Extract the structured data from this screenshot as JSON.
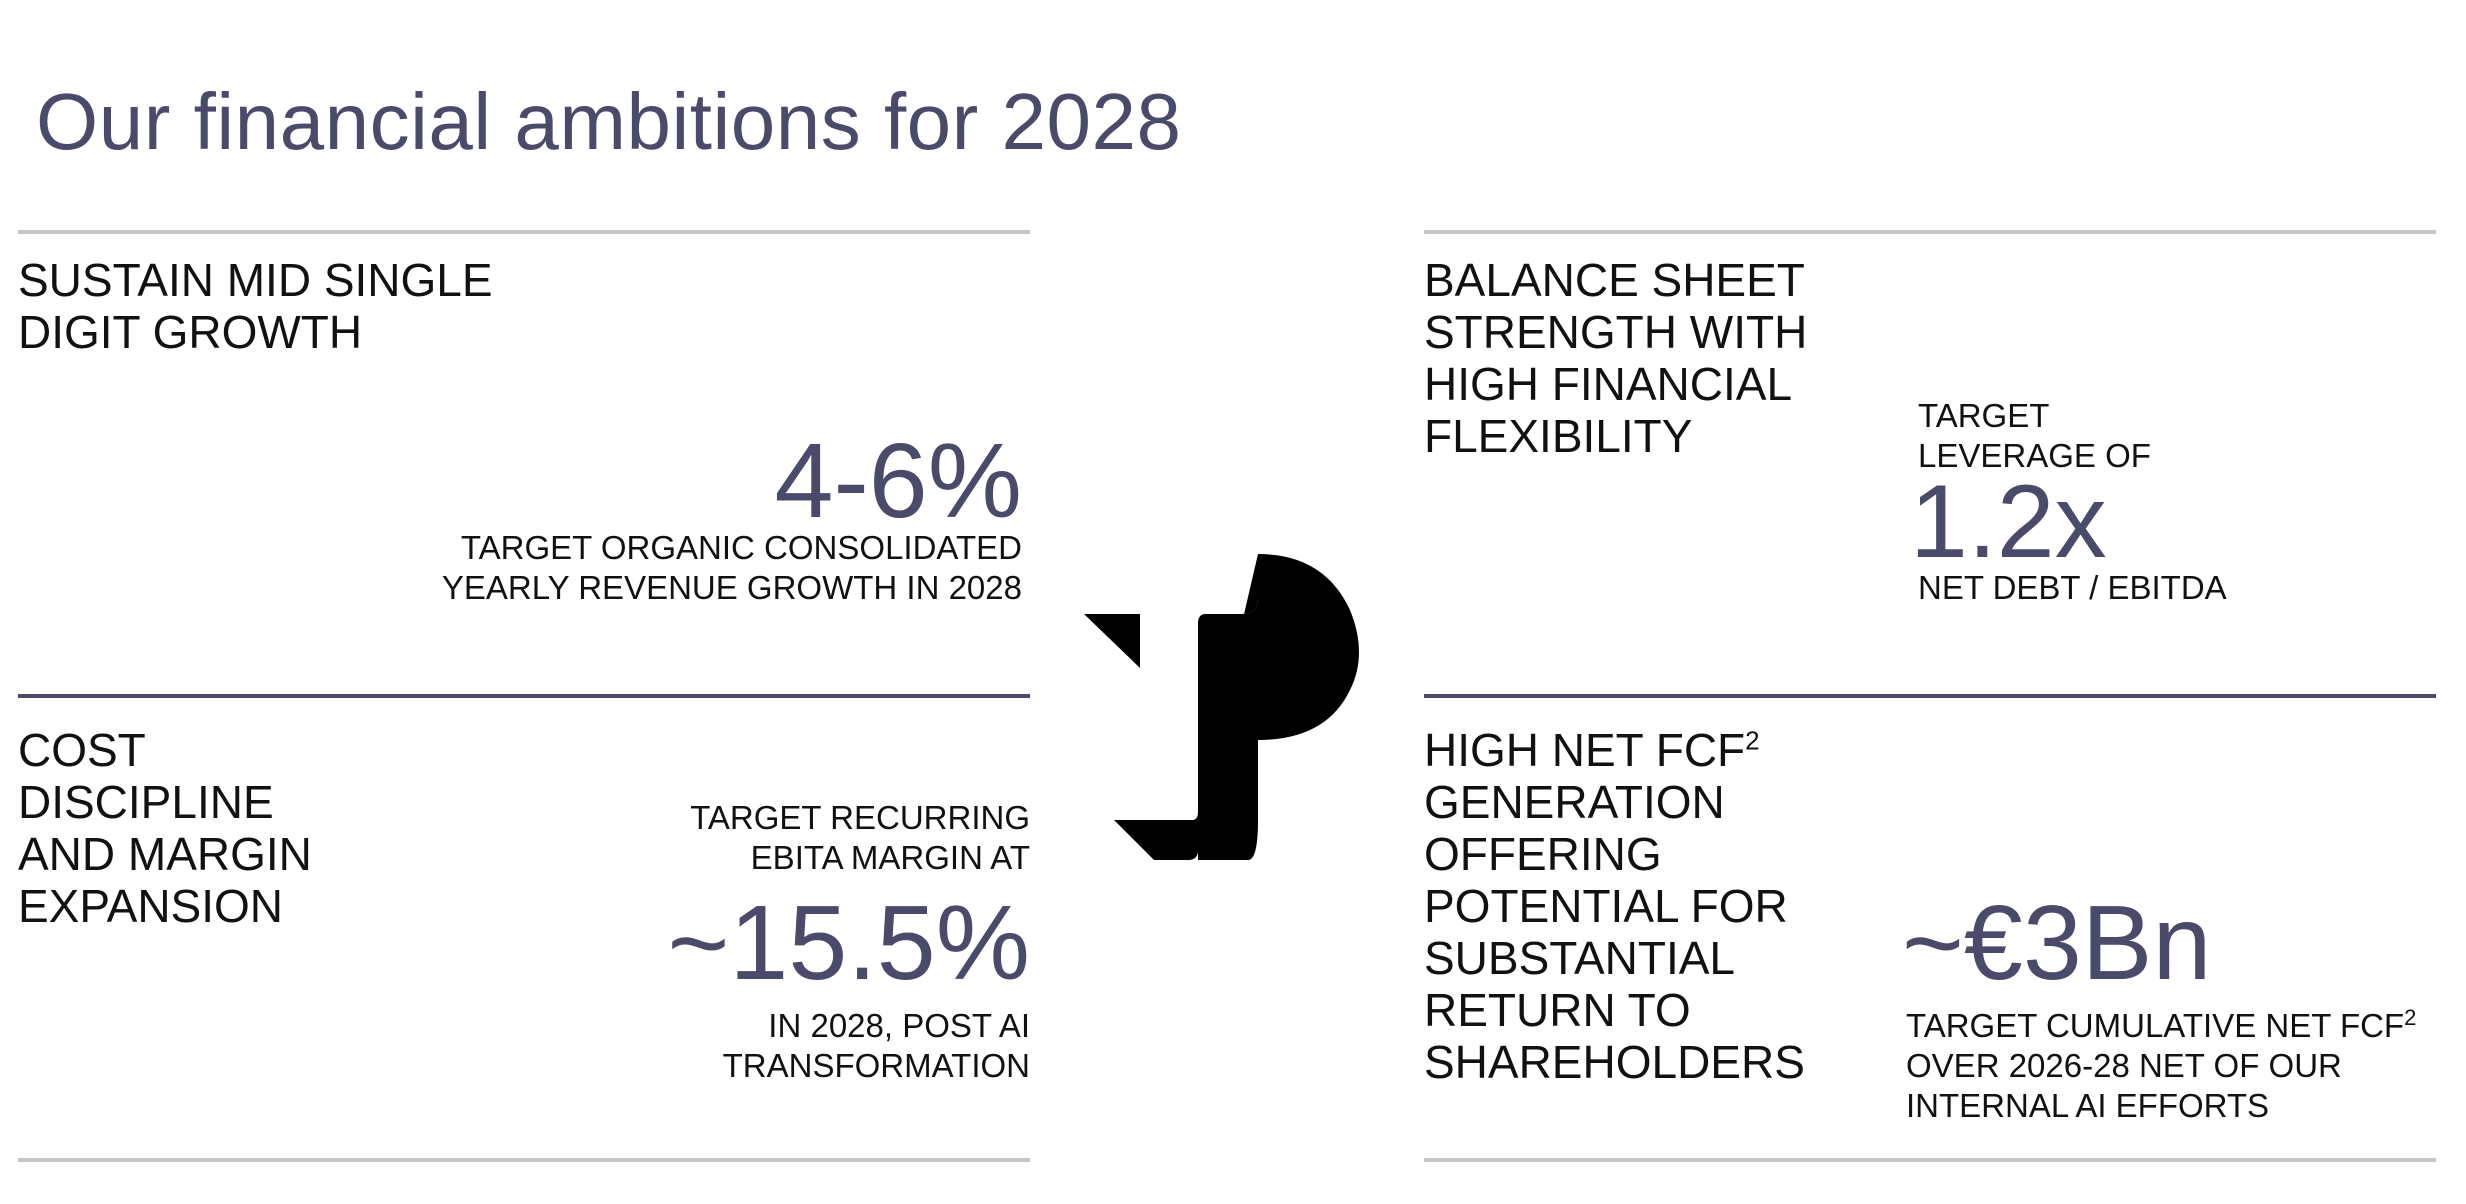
{
  "page": {
    "title": "Our financial ambitions for 2028"
  },
  "growth": {
    "heading_lines": [
      "SUSTAIN MID SINGLE",
      "DIGIT GROWTH"
    ],
    "value": "4-6%",
    "caption_lines": [
      "TARGET ORGANIC CONSOLIDATED",
      "YEARLY REVENUE GROWTH IN 2028"
    ]
  },
  "balance": {
    "heading_lines": [
      "BALANCE SHEET",
      "STRENGTH WITH",
      "HIGH FINANCIAL",
      "FLEXIBILITY"
    ],
    "pre_caption_lines": [
      "TARGET",
      "LEVERAGE OF"
    ],
    "value": "1.2x",
    "caption": "NET DEBT / EBITDA"
  },
  "margin": {
    "heading_lines": [
      "COST",
      "DISCIPLINE",
      "AND MARGIN",
      "EXPANSION"
    ],
    "pre_caption_lines": [
      "TARGET RECURRING",
      "EBITA MARGIN AT"
    ],
    "value": "~15.5%",
    "caption_lines": [
      "IN 2028, POST AI",
      "TRANSFORMATION"
    ]
  },
  "fcf": {
    "heading_first": "HIGH NET FCF",
    "footnote_mark": "2",
    "heading_lines": [
      "GENERATION",
      "OFFERING",
      "POTENTIAL FOR",
      "SUBSTANTIAL",
      "RETURN TO",
      "SHAREHOLDERS"
    ],
    "value": "~€3Bn",
    "caption_first": "TARGET CUMULATIVE NET FCF",
    "caption_footnote": "2",
    "caption_lines": [
      "OVER 2026-28 NET OF OUR",
      "INTERNAL AI EFFORTS"
    ]
  },
  "colors": {
    "accent": "#4a4a6a",
    "rule_light": "#c6c6cc",
    "text": "#111111"
  },
  "icons": {
    "logo": "brand-logo-mark"
  }
}
